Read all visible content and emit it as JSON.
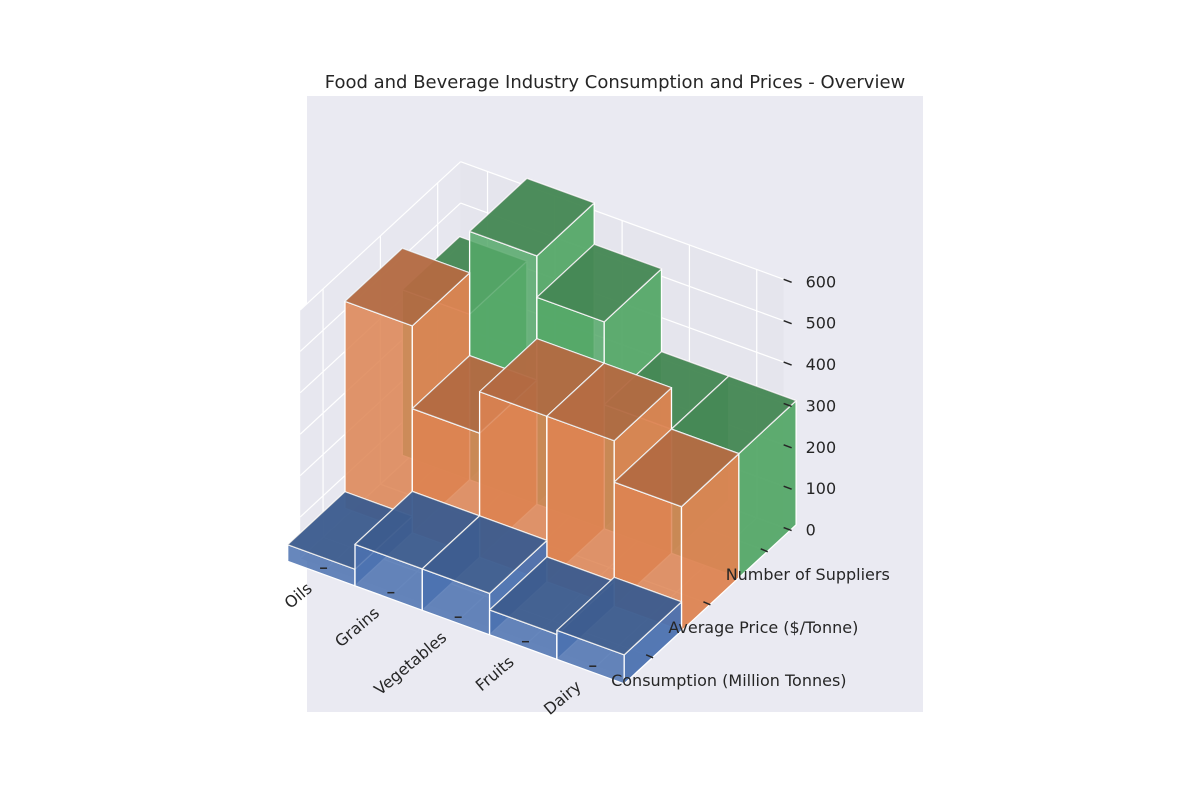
{
  "chart_data": {
    "type": "bar3d",
    "title": "Food and Beverage Industry Consumption and Prices - Overview",
    "categories": [
      "Oils",
      "Grains",
      "Vegetables",
      "Fruits",
      "Dairy"
    ],
    "series": [
      {
        "name": "Consumption (Million Tonnes)",
        "values": [
          40,
          100,
          100,
          60,
          70
        ],
        "color": "#4c72b0"
      },
      {
        "name": "Average Price ($/Tonne)",
        "values": [
          500,
          300,
          400,
          400,
          300
        ],
        "color": "#dd8452"
      },
      {
        "name": "Number of Suppliers",
        "values": [
          400,
          600,
          500,
          300,
          300
        ],
        "color": "#55a868"
      }
    ],
    "zlim": [
      0,
      600
    ],
    "zticks": [
      0,
      100,
      200,
      300,
      400,
      500,
      600
    ],
    "grid": true
  }
}
